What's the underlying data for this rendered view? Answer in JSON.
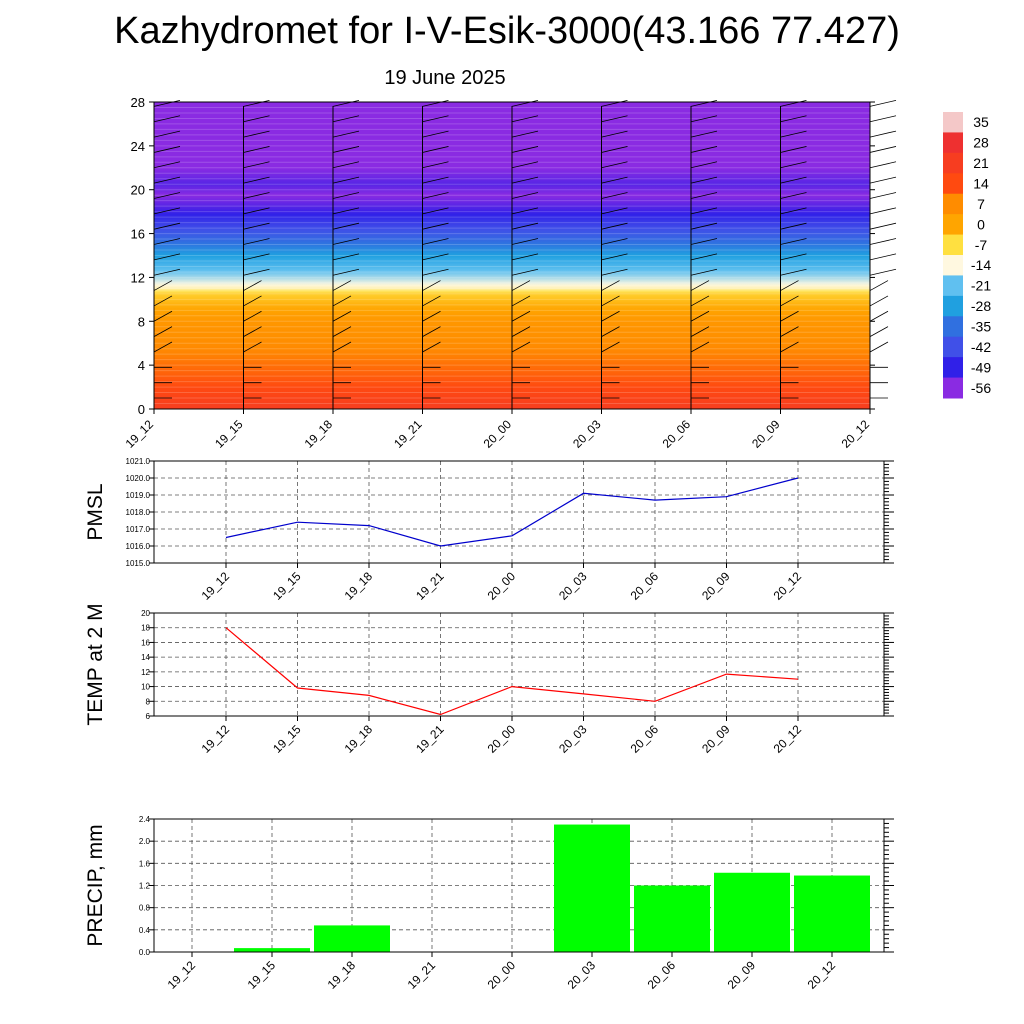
{
  "header": {
    "title": "Kazhydromet for I-V-Esik-3000(43.166 77.427)",
    "subtitle": "19 June 2025"
  },
  "chart_data": [
    {
      "type": "heatmap",
      "name": "vertical-section",
      "x_categories": [
        "19_12",
        "19_15",
        "19_18",
        "19_21",
        "20_00",
        "20_03",
        "20_06",
        "20_09",
        "20_12"
      ],
      "y_ticks": [
        0,
        4,
        8,
        12,
        16,
        20,
        24,
        28
      ],
      "ylim": [
        0,
        28
      ],
      "colorbar": {
        "labels": [
          "35",
          "28",
          "21",
          "14",
          "7",
          "0",
          "-7",
          "-14",
          "-21",
          "-28",
          "-35",
          "-42",
          "-49",
          "-56"
        ],
        "stops": [
          {
            "value": 35,
            "color": "#f4c8c8"
          },
          {
            "value": 28,
            "color": "#ee3030"
          },
          {
            "value": 14,
            "color": "#ff4a10"
          },
          {
            "value": 7,
            "color": "#ff8c00"
          },
          {
            "value": 0,
            "color": "#ffa500"
          },
          {
            "value": -7,
            "color": "#ffe040"
          },
          {
            "value": -14,
            "color": "#fff8e0"
          },
          {
            "value": -21,
            "color": "#60c0f0"
          },
          {
            "value": -28,
            "color": "#20a0e0"
          },
          {
            "value": -35,
            "color": "#3070e0"
          },
          {
            "value": -42,
            "color": "#4050e8"
          },
          {
            "value": -49,
            "color": "#3020e8"
          },
          {
            "value": -56,
            "color": "#8a2be2"
          }
        ]
      },
      "wind_barbs": "present"
    },
    {
      "type": "line",
      "name": "pmsl",
      "ylabel": "PMSL",
      "categories": [
        "19_12",
        "19_15",
        "19_18",
        "19_21",
        "20_00",
        "20_03",
        "20_06",
        "20_09",
        "20_12"
      ],
      "values": [
        1016.5,
        1017.4,
        1017.2,
        1016.0,
        1016.6,
        1019.1,
        1018.7,
        1018.9,
        1020.0
      ],
      "ylim": [
        1015.0,
        1021.0
      ],
      "y_ticks": [
        "1015.0",
        "1016.0",
        "1017.0",
        "1018.0",
        "1019.0",
        "1020.0",
        "1021.0"
      ],
      "color": "#0000cc",
      "grid": true
    },
    {
      "type": "line",
      "name": "temp-2m",
      "ylabel": "TEMP at 2 M",
      "categories": [
        "19_12",
        "19_15",
        "19_18",
        "19_21",
        "20_00",
        "20_03",
        "20_06",
        "20_09",
        "20_12"
      ],
      "values": [
        18.0,
        9.8,
        8.8,
        6.2,
        10.0,
        9.0,
        8.0,
        11.7,
        11.0
      ],
      "ylim": [
        6,
        20
      ],
      "y_ticks": [
        "6",
        "8",
        "10",
        "12",
        "14",
        "16",
        "18",
        "20"
      ],
      "color": "#ff0000",
      "grid": true
    },
    {
      "type": "bar",
      "name": "precip",
      "ylabel": "PRECIP, mm",
      "categories": [
        "19_12",
        "19_15",
        "19_18",
        "19_21",
        "20_00",
        "20_03",
        "20_06",
        "20_09",
        "20_12"
      ],
      "values": [
        0.0,
        0.07,
        0.48,
        0.0,
        0.0,
        2.3,
        1.2,
        1.43,
        1.38
      ],
      "ylim": [
        0,
        2.4
      ],
      "y_ticks": [
        "0.0",
        "0.4",
        "0.8",
        "1.2",
        "1.6",
        "2.0",
        "2.4"
      ],
      "color": "#00ff00",
      "grid": true
    }
  ]
}
